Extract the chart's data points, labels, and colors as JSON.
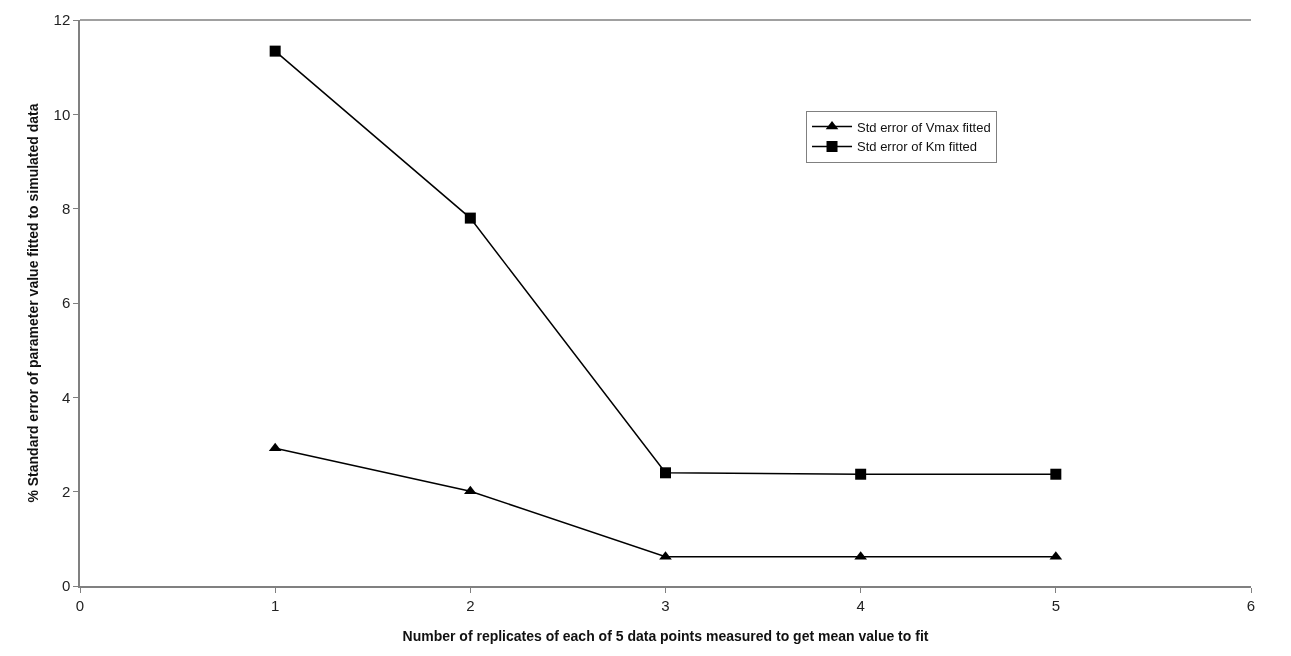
{
  "chart_data": {
    "type": "line",
    "xlabel": "Number of replicates of each of 5 data points measured to get mean value to fit",
    "ylabel": "% Standard error of parameter value fitted to simulated data",
    "x": [
      1,
      2,
      3,
      4,
      5
    ],
    "series": [
      {
        "name": "Std error of Vmax fitted",
        "color": "#000000",
        "marker": "triangle",
        "values": [
          2.92,
          2.01,
          0.62,
          0.62,
          0.62
        ]
      },
      {
        "name": "Std error of Km fitted",
        "color": "#000000",
        "marker": "square",
        "values": [
          11.34,
          7.8,
          2.4,
          2.37,
          2.37
        ]
      }
    ],
    "xlim": [
      0,
      6
    ],
    "xticks": [
      0,
      1,
      2,
      3,
      4,
      5,
      6
    ],
    "ylim": [
      0,
      12
    ],
    "yticks": [
      0,
      2,
      4,
      6,
      8,
      10,
      12
    ],
    "legend": "top right",
    "line_style": "solid"
  }
}
